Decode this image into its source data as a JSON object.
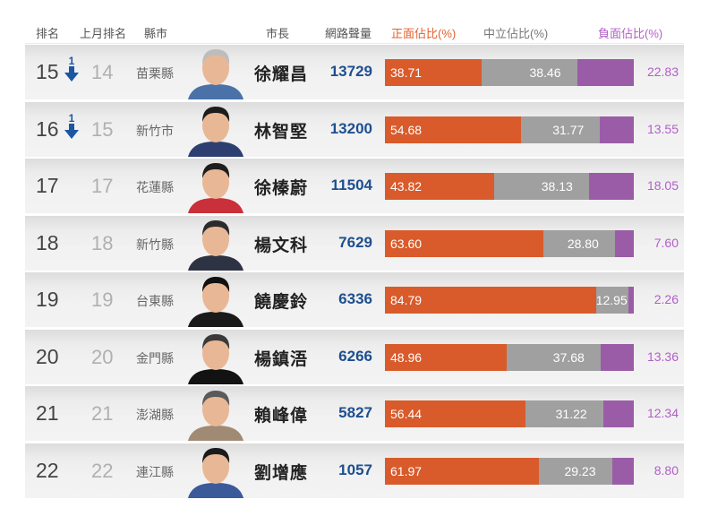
{
  "header": {
    "rank": "排名",
    "prev_rank": "上月排名",
    "city": "縣市",
    "mayor": "市長",
    "volume": "網路聲量",
    "positive": "正面佔比(%)",
    "neutral": "中立佔比(%)",
    "negative": "負面佔比(%)"
  },
  "colors": {
    "positive": "#d95b2b",
    "neutral": "#a0a0a0",
    "negative": "#9b5ca7",
    "volume_text": "#1d4f8f",
    "rank_down_arrow": "#1c56a3",
    "header_positive": "#e0622e",
    "header_negative": "#b25ec9"
  },
  "rows": [
    {
      "rank": "15",
      "change": "1",
      "change_dir": "down",
      "prev": "14",
      "city": "苗栗縣",
      "mayor": "徐耀昌",
      "volume": "13729",
      "pos": "38.71",
      "neu": "38.46",
      "neg": "22.83",
      "portrait": "portrait-older-man-blue-shirt"
    },
    {
      "rank": "16",
      "change": "1",
      "change_dir": "down",
      "prev": "15",
      "city": "新竹市",
      "mayor": "林智堅",
      "volume": "13200",
      "pos": "54.68",
      "neu": "31.77",
      "neg": "13.55",
      "portrait": "portrait-young-man-suit"
    },
    {
      "rank": "17",
      "change": "",
      "change_dir": "",
      "prev": "17",
      "city": "花蓮縣",
      "mayor": "徐榛蔚",
      "volume": "11504",
      "pos": "43.82",
      "neu": "38.13",
      "neg": "18.05",
      "portrait": "portrait-woman-red-scarf"
    },
    {
      "rank": "18",
      "change": "",
      "change_dir": "",
      "prev": "18",
      "city": "新竹縣",
      "mayor": "楊文科",
      "volume": "7629",
      "pos": "63.60",
      "neu": "28.80",
      "neg": "7.60",
      "portrait": "portrait-man-glasses-suit"
    },
    {
      "rank": "19",
      "change": "",
      "change_dir": "",
      "prev": "19",
      "city": "台東縣",
      "mayor": "饒慶鈴",
      "volume": "6336",
      "pos": "84.79",
      "neu": "12.95",
      "neg": "2.26",
      "portrait": "portrait-woman-short-hair"
    },
    {
      "rank": "20",
      "change": "",
      "change_dir": "",
      "prev": "20",
      "city": "金門縣",
      "mayor": "楊鎮浯",
      "volume": "6266",
      "pos": "48.96",
      "neu": "37.68",
      "neg": "13.36",
      "portrait": "portrait-man-black-turtleneck"
    },
    {
      "rank": "21",
      "change": "",
      "change_dir": "",
      "prev": "21",
      "city": "澎湖縣",
      "mayor": "賴峰偉",
      "volume": "5827",
      "pos": "56.44",
      "neu": "31.22",
      "neg": "12.34",
      "portrait": "portrait-man-glasses-patterned-shirt"
    },
    {
      "rank": "22",
      "change": "",
      "change_dir": "",
      "prev": "22",
      "city": "連江縣",
      "mayor": "劉增應",
      "volume": "1057",
      "pos": "61.97",
      "neu": "29.23",
      "neg": "8.80",
      "portrait": "portrait-man-blue-shirt-smiling"
    }
  ],
  "chart_data": {
    "type": "bar",
    "stacked": true,
    "orientation": "horizontal",
    "title": "",
    "categories": [
      "徐耀昌 (苗栗縣)",
      "林智堅 (新竹市)",
      "徐榛蔚 (花蓮縣)",
      "楊文科 (新竹縣)",
      "饒慶鈴 (台東縣)",
      "楊鎮浯 (金門縣)",
      "賴峰偉 (澎湖縣)",
      "劉增應 (連江縣)"
    ],
    "series": [
      {
        "name": "正面佔比(%)",
        "color": "#d95b2b",
        "values": [
          38.71,
          54.68,
          43.82,
          63.6,
          84.79,
          48.96,
          56.44,
          61.97
        ]
      },
      {
        "name": "中立佔比(%)",
        "color": "#a0a0a0",
        "values": [
          38.46,
          31.77,
          38.13,
          28.8,
          12.95,
          37.68,
          31.22,
          29.23
        ]
      },
      {
        "name": "負面佔比(%)",
        "color": "#9b5ca7",
        "values": [
          22.83,
          13.55,
          18.05,
          7.6,
          2.26,
          13.36,
          12.34,
          8.8
        ]
      }
    ],
    "extra_columns": {
      "排名": [
        15,
        16,
        17,
        18,
        19,
        20,
        21,
        22
      ],
      "上月排名": [
        14,
        15,
        17,
        18,
        19,
        20,
        21,
        22
      ],
      "排名變化": [
        -1,
        -1,
        0,
        0,
        0,
        0,
        0,
        0
      ],
      "縣市": [
        "苗栗縣",
        "新竹市",
        "花蓮縣",
        "新竹縣",
        "台東縣",
        "金門縣",
        "澎湖縣",
        "連江縣"
      ],
      "網路聲量": [
        13729,
        13200,
        11504,
        7629,
        6336,
        6266,
        5827,
        1057
      ]
    },
    "xlim": [
      0,
      100
    ],
    "grid": false,
    "legend_position": "header"
  }
}
